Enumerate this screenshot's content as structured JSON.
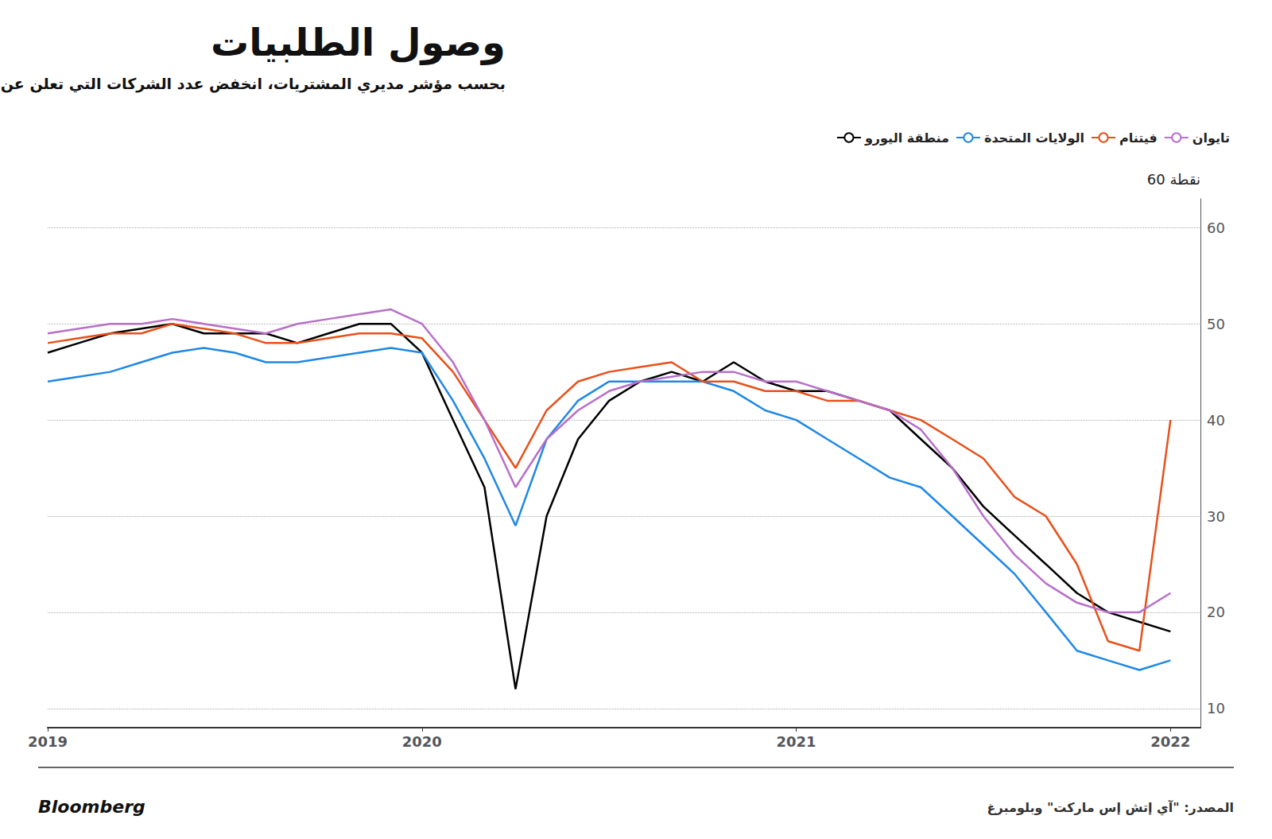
{
  "chart_data": {
    "type": "line",
    "title": "وصول الطلبيات",
    "subtitle": "بحسب مؤشر مديري المشتريات، انخفض عدد الشركات التي تعلن عن أوقات تسليم أطول للطلبيات",
    "y_label": "60 نقطة",
    "annotations": [
      "Bloomberg",
      "المصدر: \"آي إتش إس ماركت\" وبلومبرغ"
    ],
    "x": [
      2019.0,
      2019.083,
      2019.167,
      2019.25,
      2019.333,
      2019.417,
      2019.5,
      2019.583,
      2019.667,
      2019.75,
      2019.833,
      2019.917,
      2020.0,
      2020.083,
      2020.167,
      2020.25,
      2020.333,
      2020.417,
      2020.5,
      2020.583,
      2020.667,
      2020.75,
      2020.833,
      2020.917,
      2021.0,
      2021.083,
      2021.167,
      2021.25,
      2021.333,
      2021.417,
      2021.5,
      2021.583,
      2021.667,
      2021.75,
      2021.833,
      2021.917,
      2022.0
    ],
    "series": [
      {
        "name": "منطقة اليورو",
        "color": "#000000",
        "values": [
          47,
          48,
          49,
          49.5,
          50,
          49,
          49,
          49,
          48,
          49,
          50,
          50,
          47,
          40,
          33,
          12,
          30,
          38,
          42,
          44,
          45,
          44,
          46,
          44,
          43,
          43,
          42,
          41,
          38,
          35,
          31,
          28,
          25,
          22,
          20,
          19,
          18
        ]
      },
      {
        "name": "الولايات المتحدة",
        "color": "#1e88e5",
        "values": [
          44,
          44.5,
          45,
          46,
          47,
          47.5,
          47,
          46,
          46,
          46.5,
          47,
          47.5,
          47,
          42,
          36,
          29,
          38,
          42,
          44,
          44,
          44,
          44,
          43,
          41,
          40,
          38,
          36,
          34,
          33,
          30,
          27,
          24,
          20,
          16,
          15,
          14,
          15
        ]
      },
      {
        "name": "فيتنام",
        "color": "#e8501a",
        "values": [
          48,
          48.5,
          49,
          49,
          50,
          49.5,
          49,
          48,
          48,
          48.5,
          49,
          49,
          48.5,
          45,
          40,
          35,
          41,
          44,
          45,
          45.5,
          46,
          44,
          44,
          43,
          43,
          42,
          42,
          41,
          40,
          38,
          36,
          32,
          30,
          25,
          17,
          16,
          40
        ]
      },
      {
        "name": "تايوان",
        "color": "#b86fc8",
        "values": [
          49,
          49.5,
          50,
          50,
          50.5,
          50,
          49.5,
          49,
          50,
          50.5,
          51,
          51.5,
          50,
          46,
          40,
          33,
          38,
          41,
          43,
          44,
          44.5,
          45,
          45,
          44,
          44,
          43,
          42,
          41,
          39,
          35,
          30,
          26,
          23,
          21,
          20,
          20,
          22
        ]
      }
    ],
    "xlim": [
      2019.0,
      2022.08
    ],
    "xticks": [
      2019,
      2020,
      2021,
      2022
    ],
    "ylim": [
      8,
      63
    ],
    "yticks": [
      10,
      20,
      30,
      40,
      50,
      60
    ],
    "grid": true,
    "legend": "top"
  }
}
